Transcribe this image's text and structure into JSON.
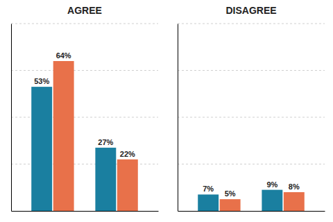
{
  "chart_data": [
    {
      "type": "bar",
      "title": "AGREE",
      "categories": [
        null,
        null
      ],
      "series": [
        {
          "color": "#1a7fa0",
          "values": [
            53,
            27
          ],
          "value_labels": [
            "53%",
            "27%"
          ]
        },
        {
          "color": "#e8714a",
          "values": [
            64,
            22
          ],
          "value_labels": [
            "64%",
            "22%"
          ]
        }
      ],
      "ylim": [
        0,
        80
      ],
      "yticks": [
        20,
        40,
        60,
        80
      ],
      "grid": true,
      "data_labels": true,
      "tick_labels": false
    },
    {
      "type": "bar",
      "title": "DISAGREE",
      "categories": [
        null,
        null
      ],
      "series": [
        {
          "color": "#1a7fa0",
          "values": [
            7,
            9
          ],
          "value_labels": [
            "7%",
            "9%"
          ]
        },
        {
          "color": "#e8714a",
          "values": [
            5,
            8
          ],
          "value_labels": [
            "5%",
            "8%"
          ]
        }
      ],
      "ylim": [
        0,
        80
      ],
      "yticks": [
        20,
        40,
        60,
        80
      ],
      "grid": true,
      "data_labels": true,
      "tick_labels": false
    }
  ]
}
